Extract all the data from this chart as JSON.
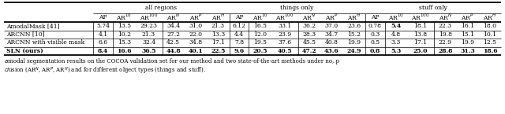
{
  "headers_top": [
    "all regions",
    "things only",
    "stuff only"
  ],
  "row_labels": [
    "AmodalMask [41]",
    "ARCNN [10]",
    "ARCNN with visible mask",
    "SLN (ours)"
  ],
  "row_bold": [
    false,
    false,
    false,
    true
  ],
  "data": [
    [
      "5.74",
      "13.5",
      "29.23",
      "34.4",
      "31.0",
      "21.3",
      "6.12",
      "16.5",
      "33.1",
      "36.2",
      "37.0",
      "23.6",
      "0.78",
      "5.4",
      "18.1",
      "22.3",
      "16.1",
      "18.0"
    ],
    [
      "4.1",
      "10.2",
      "21.3",
      "27.2",
      "22.0",
      "13.3",
      "4.4",
      "12.0",
      "23.9",
      "28.3",
      "34.7",
      "15.2",
      "0.3",
      "4.8",
      "13.8",
      "19.8",
      "15.1",
      "10.1"
    ],
    [
      "6.6",
      "15.3",
      "32.4",
      "42.5",
      "34.8",
      "17.1",
      "7.8",
      "19.5",
      "37.6",
      "45.5",
      "40.8",
      "19.9",
      "0.5",
      "3.3",
      "17.1",
      "22.9",
      "19.9",
      "12.5"
    ],
    [
      "8.4",
      "16.6",
      "36.5",
      "44.8",
      "40.1",
      "22.5",
      "9.6",
      "20.5",
      "40.5",
      "47.2",
      "43.6",
      "24.9",
      "0.8",
      "5.3",
      "25.0",
      "28.8",
      "31.3",
      "18.6"
    ]
  ],
  "col_bold": [
    [
      false,
      false,
      false,
      false,
      false,
      false,
      false,
      false,
      false,
      false,
      false,
      false,
      false,
      true,
      false,
      false,
      false,
      false
    ],
    [
      false,
      false,
      false,
      false,
      false,
      false,
      false,
      false,
      false,
      false,
      false,
      false,
      false,
      false,
      false,
      false,
      false,
      false
    ],
    [
      false,
      false,
      false,
      false,
      false,
      false,
      false,
      false,
      false,
      false,
      false,
      false,
      false,
      false,
      false,
      false,
      false,
      false
    ],
    [
      true,
      true,
      true,
      true,
      true,
      true,
      true,
      true,
      true,
      true,
      true,
      true,
      false,
      false,
      true,
      true,
      true,
      true
    ]
  ],
  "cap_italic1": "a",
  "cap_text1": "modal segmentation results on the COCOA validation set for our method and two state-of-the-art methods under no, p",
  "cap_italic2": "cl",
  "cap_text2": "usion (AR",
  "cap_text2b": ", AR",
  "cap_text2c": ", AR",
  "cap_text2d": ") and for different object types (things and stuff).",
  "fig_w": 6.4,
  "fig_h": 1.45,
  "fs_header": 5.5,
  "fs_data": 5.5,
  "fs_caption": 5.0
}
